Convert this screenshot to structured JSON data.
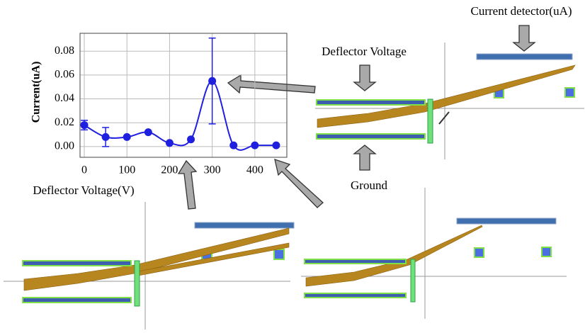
{
  "chart_data": {
    "type": "line",
    "y_label": "Current(uA)",
    "x_label": "Deflector Voltage(V)",
    "x": [
      0,
      50,
      100,
      150,
      200,
      250,
      300,
      350,
      400,
      450
    ],
    "series": [
      {
        "values": [
          0.018,
          0.008,
          0.008,
          0.012,
          0.003,
          0.006,
          0.055,
          0.001,
          0.001,
          0.001
        ],
        "errors": [
          0.004,
          0.008,
          0,
          0,
          0,
          0,
          0.036,
          0,
          0,
          0
        ],
        "color": "#1f1fe0"
      }
    ],
    "xlim": [
      -10,
      475
    ],
    "ylim": [
      -0.009,
      0.095
    ],
    "xticks": [
      0,
      100,
      200,
      300,
      400
    ],
    "yticks": [
      {
        "value": 0,
        "label": "0.00"
      },
      {
        "value": 0.02,
        "label": "0.02"
      },
      {
        "value": 0.04,
        "label": "0.04"
      },
      {
        "value": 0.06,
        "label": "0.06"
      },
      {
        "value": 0.08,
        "label": "0.08"
      }
    ],
    "grid": true
  },
  "diagram": {
    "labels": [
      "Current detector(uA)",
      "Deflector Voltage",
      "Ground"
    ]
  }
}
